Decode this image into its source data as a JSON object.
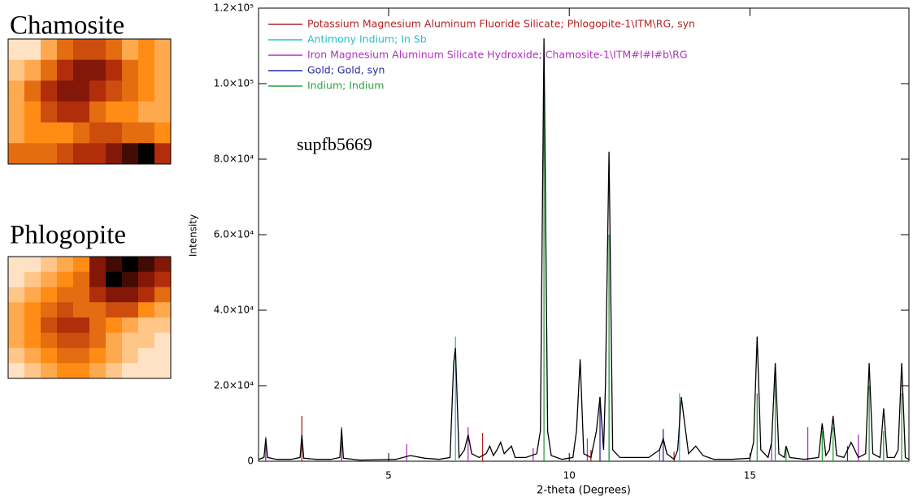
{
  "chart_data": [
    {
      "type": "heatmap",
      "title": "Chamosite",
      "values": [
        [
          0.1,
          0.1,
          0.3,
          0.5,
          0.6,
          0.6,
          0.5,
          0.3,
          0.4,
          0.3
        ],
        [
          0.2,
          0.3,
          0.5,
          0.7,
          0.8,
          0.8,
          0.7,
          0.5,
          0.4,
          0.3
        ],
        [
          0.3,
          0.5,
          0.7,
          0.8,
          0.8,
          0.7,
          0.6,
          0.5,
          0.4,
          0.3
        ],
        [
          0.3,
          0.4,
          0.6,
          0.7,
          0.7,
          0.5,
          0.4,
          0.4,
          0.3,
          0.3
        ],
        [
          0.3,
          0.4,
          0.4,
          0.4,
          0.5,
          0.6,
          0.6,
          0.5,
          0.5,
          0.4
        ],
        [
          0.5,
          0.5,
          0.5,
          0.6,
          0.7,
          0.7,
          0.8,
          0.9,
          1,
          0.7
        ]
      ]
    },
    {
      "type": "heatmap",
      "title": "Phlogopite",
      "values": [
        [
          0.1,
          0.1,
          0.2,
          0.3,
          0.4,
          0.8,
          0.9,
          1,
          0.9,
          0.8
        ],
        [
          0.1,
          0.2,
          0.3,
          0.4,
          0.5,
          0.8,
          1,
          0.9,
          0.8,
          0.7
        ],
        [
          0.2,
          0.3,
          0.4,
          0.5,
          0.5,
          0.7,
          0.8,
          0.8,
          0.7,
          0.5
        ],
        [
          0.3,
          0.4,
          0.5,
          0.6,
          0.5,
          0.5,
          0.6,
          0.6,
          0.4,
          0.3
        ],
        [
          0.3,
          0.4,
          0.6,
          0.7,
          0.7,
          0.5,
          0.4,
          0.3,
          0.2,
          0.2
        ],
        [
          0.3,
          0.4,
          0.5,
          0.6,
          0.6,
          0.5,
          0.3,
          0.2,
          0.2,
          0.1
        ],
        [
          0.2,
          0.3,
          0.4,
          0.5,
          0.5,
          0.4,
          0.3,
          0.2,
          0.1,
          0.1
        ],
        [
          0.1,
          0.2,
          0.3,
          0.4,
          0.4,
          0.3,
          0.2,
          0.1,
          0.1,
          0.1
        ]
      ]
    },
    {
      "type": "line",
      "annotation": "supfb5669",
      "xlabel": "2-theta (Degrees)",
      "ylabel": "Intensity",
      "xlim": [
        1.4,
        19.4
      ],
      "xticks": [
        5,
        10,
        15
      ],
      "ylim": [
        0,
        120000
      ],
      "yticks": [
        0,
        {
          "value": 20000,
          "label": "2.0×10⁴"
        },
        {
          "value": 40000,
          "label": "4.0×10⁴"
        },
        {
          "value": 60000,
          "label": "6.0×10⁴"
        },
        {
          "value": 80000,
          "label": "8.0×10⁴"
        },
        {
          "value": 100000,
          "label": "1.0×10⁵"
        },
        {
          "value": 120000,
          "label": "1.2×10⁵"
        }
      ],
      "pattern": {
        "color": "#000000",
        "x": [
          1.4,
          1.55,
          1.6,
          1.65,
          1.9,
          2.3,
          2.55,
          2.6,
          2.65,
          3.0,
          3.4,
          3.65,
          3.7,
          3.75,
          4.2,
          4.8,
          5.2,
          5.6,
          6.0,
          6.4,
          6.7,
          6.8,
          6.85,
          6.95,
          7.1,
          7.2,
          7.3,
          7.5,
          7.7,
          7.8,
          7.9,
          8.0,
          8.1,
          8.2,
          8.3,
          8.4,
          8.5,
          8.8,
          9.1,
          9.2,
          9.3,
          9.4,
          9.5,
          9.8,
          10.1,
          10.2,
          10.3,
          10.4,
          10.6,
          10.75,
          10.85,
          10.95,
          11.0,
          11.1,
          11.2,
          11.4,
          11.8,
          12.2,
          12.5,
          12.6,
          12.7,
          12.9,
          13.0,
          13.1,
          13.3,
          13.5,
          13.7,
          14.0,
          14.5,
          15.0,
          15.1,
          15.2,
          15.3,
          15.5,
          15.6,
          15.7,
          15.8,
          15.95,
          16.0,
          16.1,
          16.5,
          16.9,
          17.0,
          17.1,
          17.2,
          17.3,
          17.4,
          17.6,
          17.8,
          18.0,
          18.2,
          18.3,
          18.4,
          18.6,
          18.7,
          18.8,
          19.0,
          19.1,
          19.2,
          19.3,
          19.4
        ],
        "values": [
          500,
          1000,
          6000,
          1000,
          500,
          500,
          1000,
          7000,
          800,
          500,
          500,
          1000,
          8500,
          800,
          300,
          400,
          500,
          1500,
          800,
          500,
          1000,
          26000,
          30000,
          1000,
          3000,
          7000,
          2000,
          1000,
          2000,
          4000,
          1500,
          3000,
          5000,
          2000,
          3000,
          4000,
          1000,
          1000,
          2000,
          8000,
          112000,
          8000,
          1500,
          500,
          1000,
          8000,
          27000,
          2000,
          1000,
          8000,
          17000,
          3000,
          20000,
          82000,
          3000,
          1000,
          1000,
          1000,
          3000,
          6000,
          2000,
          500,
          3000,
          17000,
          2000,
          4000,
          1500,
          500,
          500,
          800,
          5000,
          33000,
          3000,
          1000,
          5000,
          26000,
          2000,
          1000,
          4000,
          1000,
          500,
          1000,
          10000,
          1500,
          3000,
          12000,
          1500,
          1000,
          5000,
          1000,
          2000,
          26000,
          2000,
          1000,
          14000,
          1000,
          1000,
          3000,
          26000,
          1000,
          500
        ]
      },
      "series": [
        {
          "name": "Potassium Magnesium Aluminum Fluoride Silicate; Phlogopite-1\\ITM\\RG, syn",
          "color": "#b22222",
          "x": [
            1.6,
            2.6,
            3.7,
            7.6,
            10.6,
            12.9
          ],
          "values": [
            3000,
            12000,
            9000,
            7500,
            3000,
            2500
          ]
        },
        {
          "name": "Antimony Indium; In Sb",
          "color": "#22bfcf",
          "x": [
            6.85,
            11.1,
            13.05
          ],
          "values": [
            33000,
            29000,
            18000
          ]
        },
        {
          "name": "Iron Magnesium Aluminum Silicate Hydroxide; Chamosite-1\\ITM#I#I#b\\RG",
          "color": "#b030c0",
          "x": [
            1.6,
            3.7,
            5.5,
            7.2,
            9.0,
            10.5,
            12.5,
            15.6,
            16.6,
            18.0
          ],
          "values": [
            6500,
            9000,
            4500,
            9000,
            3500,
            6000,
            3500,
            4500,
            9000,
            7000
          ]
        },
        {
          "name": "Gold; Gold, syn",
          "color": "#2a2aa0",
          "x": [
            10.85,
            12.6,
            17.7
          ],
          "values": [
            17000,
            8500,
            4000
          ]
        },
        {
          "name": "Indium; Indium",
          "color": "#2e9e3e",
          "x": [
            9.3,
            11.1,
            15.2,
            15.7,
            16.0,
            17.0,
            17.3,
            18.3,
            18.7,
            19.2
          ],
          "values": [
            102000,
            60000,
            18000,
            22000,
            4000,
            8000,
            9000,
            20000,
            8000,
            18000
          ]
        }
      ]
    }
  ]
}
